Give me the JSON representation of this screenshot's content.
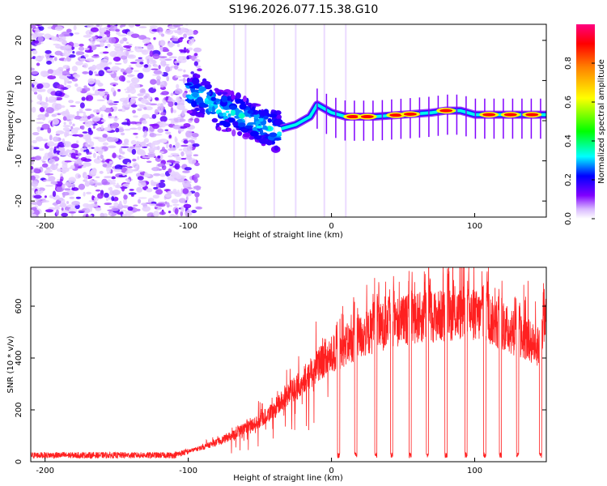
{
  "title": "S196.2026.077.15.38.G10",
  "chart_data": [
    {
      "type": "heatmap",
      "xlabel": "Height of straight line (km)",
      "ylabel": "Frequency (Hz)",
      "xlim": [
        -210,
        150
      ],
      "ylim": [
        -24,
        24
      ],
      "xticks": [
        -200,
        -100,
        0,
        100
      ],
      "yticks": [
        -20,
        -10,
        0,
        10,
        20
      ],
      "colorbar": {
        "label": "Normalized spectral amplitude",
        "range": [
          0,
          1
        ],
        "ticks": [
          0.0,
          0.2,
          0.4,
          0.6,
          0.8
        ],
        "tick_labels": [
          "0.0",
          "0.2",
          "0.4",
          "0.6",
          "0.8"
        ],
        "colors": [
          "#ffffff",
          "#d8b8ff",
          "#8000ff",
          "#0000ff",
          "#00ffff",
          "#00ff00",
          "#ffff00",
          "#ff8000",
          "#ff0000",
          "#ff0080"
        ]
      },
      "features": {
        "noise_region_x": [
          -210,
          -100
        ],
        "transition_region_x": [
          -100,
          -35
        ],
        "transition_trace": [
          [
            -100,
            7
          ],
          [
            -90,
            6
          ],
          [
            -80,
            3
          ],
          [
            -70,
            2
          ],
          [
            -60,
            1
          ],
          [
            -50,
            -1
          ],
          [
            -40,
            -2
          ],
          [
            -35,
            -3
          ]
        ],
        "stable_trace": [
          [
            -35,
            -2
          ],
          [
            -25,
            -1
          ],
          [
            -15,
            1
          ],
          [
            -10,
            4
          ],
          [
            0,
            2
          ],
          [
            10,
            1
          ],
          [
            30,
            1
          ],
          [
            50,
            1.5
          ],
          [
            70,
            2
          ],
          [
            80,
            2.5
          ],
          [
            90,
            2.5
          ],
          [
            100,
            1.5
          ],
          [
            120,
            1.5
          ],
          [
            150,
            1.5
          ]
        ],
        "peak_amplitude_x": [
          15,
          25,
          45,
          55,
          80,
          110,
          125,
          140
        ]
      }
    },
    {
      "type": "line",
      "xlabel": "Height of straight line (km)",
      "ylabel": "SNR (10 * v/v)",
      "xlim": [
        -210,
        150
      ],
      "ylim": [
        0,
        750
      ],
      "xticks": [
        -200,
        -100,
        0,
        100
      ],
      "yticks": [
        0,
        200,
        400,
        600
      ],
      "color": "#ff2020",
      "envelope": [
        [
          -210,
          25
        ],
        [
          -150,
          25
        ],
        [
          -110,
          25
        ],
        [
          -100,
          40
        ],
        [
          -90,
          55
        ],
        [
          -80,
          75
        ],
        [
          -70,
          100
        ],
        [
          -60,
          130
        ],
        [
          -50,
          160
        ],
        [
          -40,
          200
        ],
        [
          -30,
          260
        ],
        [
          -20,
          310
        ],
        [
          -10,
          370
        ],
        [
          0,
          410
        ],
        [
          10,
          450
        ],
        [
          20,
          480
        ],
        [
          30,
          510
        ],
        [
          40,
          530
        ],
        [
          50,
          545
        ],
        [
          60,
          555
        ],
        [
          70,
          560
        ],
        [
          80,
          565
        ],
        [
          90,
          570
        ],
        [
          100,
          565
        ],
        [
          110,
          550
        ],
        [
          120,
          520
        ],
        [
          130,
          490
        ],
        [
          140,
          460
        ],
        [
          145,
          430
        ],
        [
          150,
          560
        ]
      ],
      "dropouts_x": [
        5,
        17,
        31,
        42,
        55,
        67,
        80,
        94,
        107,
        118,
        130,
        146
      ]
    }
  ]
}
